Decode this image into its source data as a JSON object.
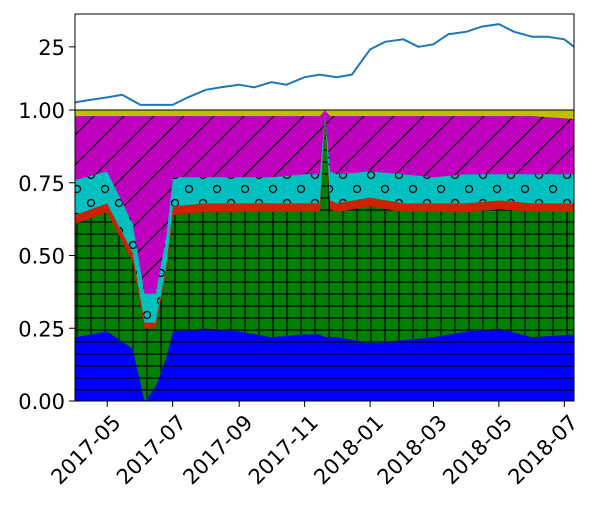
{
  "chart_data": [
    {
      "type": "line",
      "panel": "top",
      "title": "",
      "xlabel": "",
      "ylabel": "",
      "ylim": [
        0,
        38
      ],
      "yticks": [
        25
      ],
      "grid": false,
      "color": "#1f77b4",
      "series": [
        {
          "x": [
            "2017-04-01",
            "2017-04-15",
            "2017-05-01",
            "2017-05-15",
            "2017-06-01",
            "2017-06-15",
            "2017-07-01",
            "2017-07-15",
            "2017-08-01",
            "2017-08-15",
            "2017-09-01",
            "2017-09-15",
            "2017-10-01",
            "2017-10-15",
            "2017-11-01",
            "2017-11-15",
            "2017-12-01",
            "2017-12-15",
            "2018-01-01",
            "2018-01-15",
            "2018-02-01",
            "2018-02-15",
            "2018-03-01",
            "2018-03-15",
            "2018-04-01",
            "2018-04-15",
            "2018-05-01",
            "2018-05-15",
            "2018-06-01",
            "2018-06-15",
            "2018-07-01",
            "2018-07-10"
          ],
          "values": [
            3,
            4,
            5,
            6,
            2,
            2,
            2,
            5,
            8,
            9,
            10,
            9,
            11,
            10,
            13,
            14,
            13,
            14,
            24,
            27,
            28,
            25,
            26,
            30,
            31,
            33,
            34,
            31,
            29,
            29,
            28,
            25
          ]
        }
      ]
    },
    {
      "type": "area",
      "panel": "bottom",
      "stacked": true,
      "normalized": true,
      "title": "",
      "xlabel": "",
      "ylabel": "",
      "ylim": [
        0,
        1.0
      ],
      "yticks": [
        "0.00",
        "0.25",
        "0.50",
        "0.75",
        "1.00"
      ],
      "xticks": [
        "2017-05",
        "2017-07",
        "2017-09",
        "2017-11",
        "2018-01",
        "2018-03",
        "2018-05",
        "2018-07"
      ],
      "x": [
        "2017-04-01",
        "2017-05-01",
        "2017-05-25",
        "2017-06-05",
        "2017-06-15",
        "2017-06-25",
        "2017-07-01",
        "2017-08-01",
        "2017-09-01",
        "2017-10-01",
        "2017-11-01",
        "2017-11-15",
        "2017-11-20",
        "2017-11-25",
        "2017-12-01",
        "2018-01-01",
        "2018-02-01",
        "2018-03-01",
        "2018-04-01",
        "2018-05-01",
        "2018-06-01",
        "2018-07-10"
      ],
      "series": [
        {
          "color": "#0000ff",
          "hatch": "-",
          "values": [
            0.22,
            0.24,
            0.18,
            0.0,
            0.05,
            0.15,
            0.24,
            0.25,
            0.24,
            0.22,
            0.23,
            0.23,
            0.22,
            0.22,
            0.22,
            0.2,
            0.21,
            0.22,
            0.24,
            0.25,
            0.22,
            0.23
          ]
        },
        {
          "color": "#008000",
          "hatch": "+",
          "values": [
            0.39,
            0.41,
            0.3,
            0.25,
            0.2,
            0.3,
            0.4,
            0.4,
            0.41,
            0.43,
            0.42,
            0.42,
            0.78,
            0.44,
            0.43,
            0.47,
            0.44,
            0.43,
            0.41,
            0.41,
            0.43,
            0.42
          ]
        },
        {
          "color": "#cc2200",
          "hatch": "",
          "values": [
            0.03,
            0.03,
            0.03,
            0.02,
            0.02,
            0.02,
            0.03,
            0.03,
            0.03,
            0.03,
            0.03,
            0.03,
            0.0,
            0.03,
            0.03,
            0.03,
            0.03,
            0.03,
            0.03,
            0.03,
            0.03,
            0.03
          ]
        },
        {
          "color": "#00bfbf",
          "hatch": "o",
          "values": [
            0.12,
            0.11,
            0.1,
            0.1,
            0.1,
            0.1,
            0.1,
            0.09,
            0.09,
            0.09,
            0.1,
            0.1,
            0.0,
            0.1,
            0.1,
            0.09,
            0.1,
            0.09,
            0.1,
            0.09,
            0.1,
            0.1
          ]
        },
        {
          "color": "#bf00bf",
          "hatch": "/",
          "values": [
            0.22,
            0.19,
            0.37,
            0.61,
            0.61,
            0.41,
            0.21,
            0.21,
            0.21,
            0.21,
            0.2,
            0.2,
            0.0,
            0.19,
            0.2,
            0.19,
            0.2,
            0.21,
            0.2,
            0.2,
            0.2,
            0.19
          ]
        },
        {
          "color": "#bfbf00",
          "hatch": "",
          "values": [
            0.02,
            0.02,
            0.02,
            0.02,
            0.02,
            0.02,
            0.02,
            0.02,
            0.02,
            0.02,
            0.02,
            0.02,
            0.0,
            0.02,
            0.02,
            0.02,
            0.02,
            0.02,
            0.02,
            0.02,
            0.02,
            0.03
          ]
        }
      ]
    }
  ]
}
